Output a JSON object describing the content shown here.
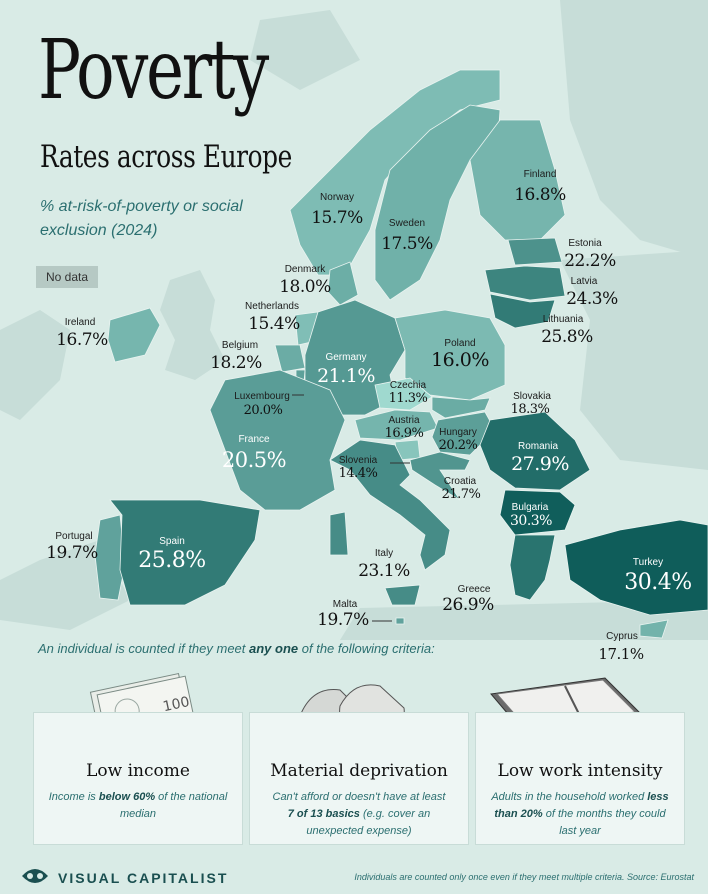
{
  "title": "Poverty",
  "subtitle": "Rates across Europe",
  "description": "% at-risk-of-poverty or social exclusion (2024)",
  "no_data_label": "No data",
  "countries": [
    {
      "name": "Norway",
      "value": "15.7%",
      "rate": 15.7
    },
    {
      "name": "Sweden",
      "value": "17.5%",
      "rate": 17.5
    },
    {
      "name": "Finland",
      "value": "16.8%",
      "rate": 16.8
    },
    {
      "name": "Estonia",
      "value": "22.2%",
      "rate": 22.2
    },
    {
      "name": "Latvia",
      "value": "24.3%",
      "rate": 24.3
    },
    {
      "name": "Lithuania",
      "value": "25.8%",
      "rate": 25.8
    },
    {
      "name": "Denmark",
      "value": "18.0%",
      "rate": 18.0
    },
    {
      "name": "Netherlands",
      "value": "15.4%",
      "rate": 15.4
    },
    {
      "name": "Ireland",
      "value": "16.7%",
      "rate": 16.7
    },
    {
      "name": "Belgium",
      "value": "18.2%",
      "rate": 18.2
    },
    {
      "name": "Germany",
      "value": "21.1%",
      "rate": 21.1
    },
    {
      "name": "Poland",
      "value": "16.0%",
      "rate": 16.0
    },
    {
      "name": "Czechia",
      "value": "11.3%",
      "rate": 11.3
    },
    {
      "name": "Slovakia",
      "value": "18.3%",
      "rate": 18.3
    },
    {
      "name": "Luxembourg",
      "value": "20.0%",
      "rate": 20.0
    },
    {
      "name": "Austria",
      "value": "16.9%",
      "rate": 16.9
    },
    {
      "name": "Hungary",
      "value": "20.2%",
      "rate": 20.2
    },
    {
      "name": "Romania",
      "value": "27.9%",
      "rate": 27.9
    },
    {
      "name": "France",
      "value": "20.5%",
      "rate": 20.5
    },
    {
      "name": "Slovenia",
      "value": "14.4%",
      "rate": 14.4
    },
    {
      "name": "Croatia",
      "value": "21.7%",
      "rate": 21.7
    },
    {
      "name": "Bulgaria",
      "value": "30.3%",
      "rate": 30.3
    },
    {
      "name": "Portugal",
      "value": "19.7%",
      "rate": 19.7
    },
    {
      "name": "Spain",
      "value": "25.8%",
      "rate": 25.8
    },
    {
      "name": "Italy",
      "value": "23.1%",
      "rate": 23.1
    },
    {
      "name": "Turkey",
      "value": "30.4%",
      "rate": 30.4
    },
    {
      "name": "Greece",
      "value": "26.9%",
      "rate": 26.9
    },
    {
      "name": "Malta",
      "value": "19.7%",
      "rate": 19.7
    },
    {
      "name": "Cyprus",
      "value": "17.1%",
      "rate": 17.1
    }
  ],
  "criteria": {
    "pre": "An individual is counted if they meet ",
    "em": "any one",
    "post": " of the following criteria:"
  },
  "panels": [
    {
      "heading": "Low income",
      "pre": "Income is ",
      "em": "below 60%",
      "post": " of the national median"
    },
    {
      "heading": "Material deprivation",
      "pre": "Can't afford or doesn't have at least ",
      "em": "7 of 13 basics",
      "post": " (e.g. cover an unexpected expense)"
    },
    {
      "heading": "Low work intensity",
      "pre": "Adults in the household worked ",
      "em": "less than 20%",
      "post": " of the months they could last year"
    }
  ],
  "banknote_text": "100",
  "brand": "VISUAL CAPITALIST",
  "footnote": "Individuals are counted only once even if they meet multiple criteria. Source: Eurostat",
  "colors": {
    "background": "#d9ebe6",
    "land": "#c7ddd8",
    "no_data": "#b6c9c4",
    "scale_low": "#9fd9cf",
    "scale_high": "#0f5d5a",
    "accent": "#2b6f70"
  }
}
